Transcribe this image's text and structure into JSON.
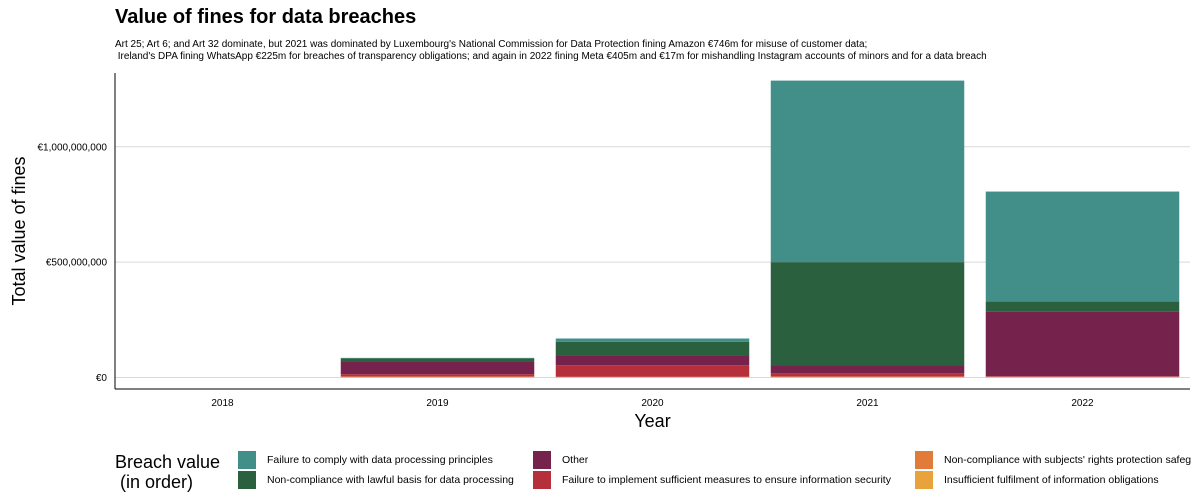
{
  "chart_data": {
    "type": "bar",
    "stacked": true,
    "title": "Value of fines for data breaches",
    "subtitle": [
      "Art 25; Art 6; and Art 32 dominate, but 2021 was dominated by Luxembourg's National Commission for Data Protection fining Amazon €746m for misuse of customer data;",
      " Ireland's DPA fining WhatsApp €225m for breaches of transparency obligations; and again in 2022 fining Meta €405m and €17m for mishandling Instagram accounts of minors and for a data breach"
    ],
    "xlabel": "Year",
    "ylabel": "Total value of fines",
    "categories": [
      "2018",
      "2019",
      "2020",
      "2021",
      "2022"
    ],
    "ylim": [
      -50000000,
      1320000000
    ],
    "yticks": [
      0,
      500000000,
      1000000000
    ],
    "ytick_labels": [
      "€0",
      "€500,000,000",
      "€1,000,000,000"
    ],
    "grid": "horizontal",
    "legend_title": [
      "Breach value",
      " (in order)"
    ],
    "legend_position": "bottom",
    "series": [
      {
        "name": "Insufficient fulfilment of information obligations",
        "color": "#e8a33d",
        "values": [
          0,
          3000000,
          2000000,
          3000000,
          2000000
        ]
      },
      {
        "name": "Non-compliance with subjects' rights protection safeg",
        "color": "#e07b39",
        "values": [
          0,
          1000000,
          1000000,
          1000000,
          1000000
        ]
      },
      {
        "name": "Failure to implement sufficient measures to ensure information security",
        "color": "#b5303a",
        "values": [
          0,
          10000000,
          50000000,
          15000000,
          2000000
        ]
      },
      {
        "name": "Other",
        "color": "#75234c",
        "values": [
          0,
          55000000,
          44000000,
          33000000,
          282000000
        ]
      },
      {
        "name": "Non-compliance with lawful basis for data processing",
        "color": "#2b603e",
        "values": [
          0,
          14000000,
          58000000,
          448000000,
          42000000
        ]
      },
      {
        "name": "Failure to comply with data processing principles",
        "color": "#418f88",
        "values": [
          0,
          2000000,
          14000000,
          787000000,
          477000000
        ]
      }
    ],
    "legend_order": [
      5,
      4,
      3,
      2,
      1,
      0
    ]
  }
}
